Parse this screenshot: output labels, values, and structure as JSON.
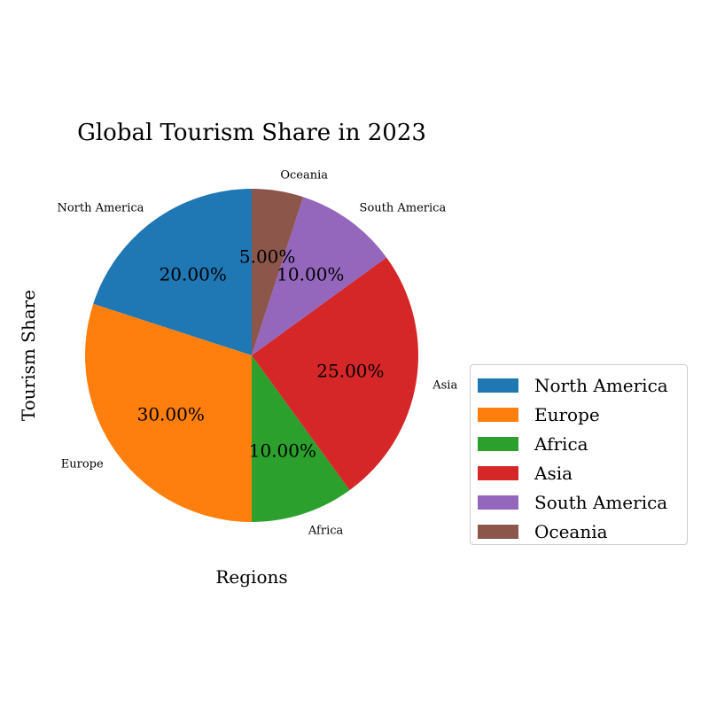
{
  "chart_data": {
    "type": "pie",
    "title": "Global Tourism Share in 2023",
    "xlabel": "Regions",
    "ylabel": "Tourism Share",
    "categories": [
      "North America",
      "Europe",
      "Africa",
      "Asia",
      "South America",
      "Oceania"
    ],
    "values": [
      20,
      30,
      10,
      25,
      10,
      5
    ],
    "percent_labels": [
      "20.00%",
      "30.00%",
      "10.00%",
      "25.00%",
      "10.00%",
      "5.00%"
    ],
    "colors": [
      "#1f77b4",
      "#ff7f0e",
      "#2ca02c",
      "#d62728",
      "#9467bd",
      "#8c564b"
    ],
    "start_angle": 90,
    "direction": "counterclockwise",
    "legend_placement": "lower-right outside"
  }
}
